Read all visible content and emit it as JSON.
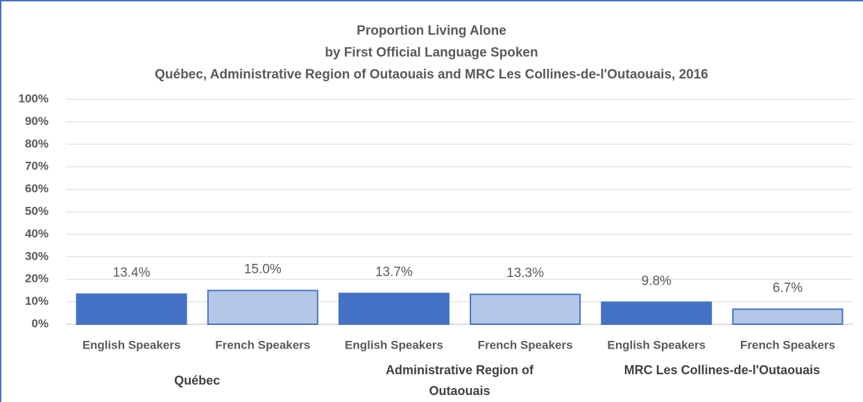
{
  "chart_data": {
    "type": "bar",
    "title": [
      "Proportion Living Alone",
      "by First Official Language Spoken",
      "Québec, Administrative Region of Outaouais and MRC Les Collines-de-l'Outaouais,  2016"
    ],
    "categories": [
      "Québec",
      "Administrative Region of Outaouais",
      "MRC Les Collines-de-l'Outaouais"
    ],
    "series": [
      {
        "name": "English Speakers",
        "color": "#4472c4",
        "values": [
          13.4,
          13.7,
          9.8
        ],
        "value_labels": [
          "13.4%",
          "13.7%",
          "9.8%"
        ]
      },
      {
        "name": "French Speakers",
        "color": "#b4c7e7",
        "values": [
          15.0,
          13.3,
          6.7
        ],
        "value_labels": [
          "15.0%",
          "13.3%",
          "6.7%"
        ]
      }
    ],
    "bar_edge_color": "#4472c4",
    "ylim": [
      0,
      100
    ],
    "yticks": [
      {
        "value": 0,
        "label": "0%"
      },
      {
        "value": 10,
        "label": "10%"
      },
      {
        "value": 20,
        "label": "20%"
      },
      {
        "value": 30,
        "label": "30%"
      },
      {
        "value": 40,
        "label": "40%"
      },
      {
        "value": 50,
        "label": "50%"
      },
      {
        "value": 60,
        "label": "60%"
      },
      {
        "value": 70,
        "label": "70%"
      },
      {
        "value": 80,
        "label": "80%"
      },
      {
        "value": 90,
        "label": "90%"
      },
      {
        "value": 100,
        "label": "100%"
      }
    ],
    "grid": true
  }
}
